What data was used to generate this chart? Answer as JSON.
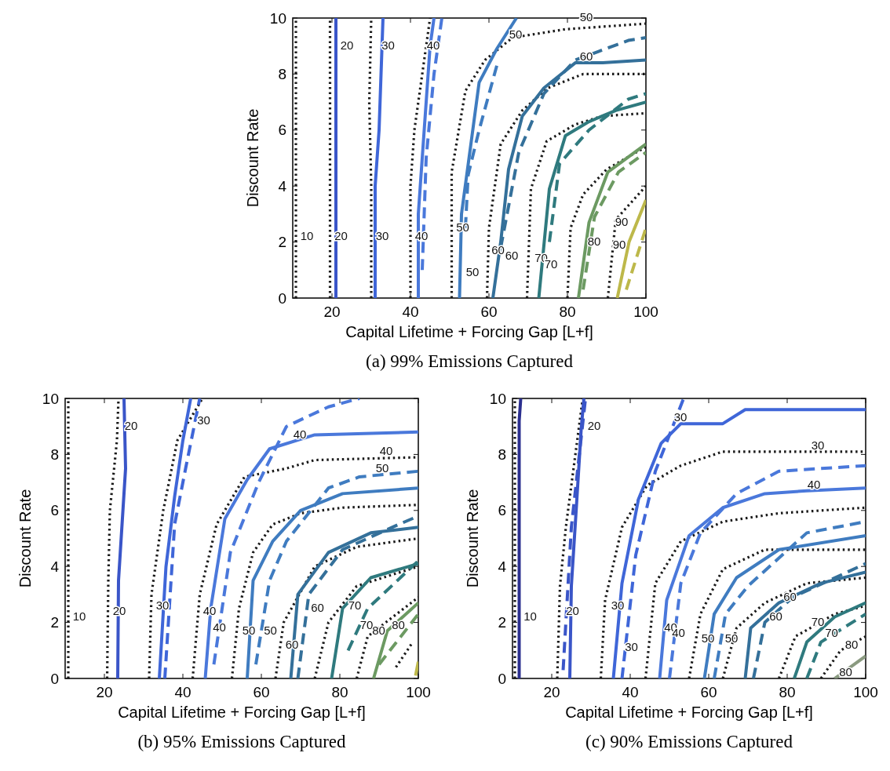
{
  "chart_data": [
    {
      "type": "line",
      "title": "(a) 99% Emissions Captured",
      "xlabel": "Capital Lifetime + Forcing Gap [L+f]",
      "ylabel": "Discount Rate",
      "xlim": [
        10,
        100
      ],
      "ylim": [
        0,
        10
      ],
      "xticks": [
        20,
        40,
        60,
        80,
        100
      ],
      "yticks": [
        0,
        2,
        4,
        6,
        8,
        10
      ],
      "marker": "none",
      "series": [
        {
          "color": "#1a1a1a",
          "line_style": "dotted",
          "x": [
            10.8,
            10.8
          ],
          "values": [
            0,
            10
          ]
        },
        {
          "color": "#1a1a1a",
          "line_style": "dotted",
          "x": [
            19.5,
            19.5
          ],
          "values": [
            0,
            10
          ]
        },
        {
          "color": "#3a55c8",
          "line_style": "solid",
          "x": [
            21,
            21
          ],
          "values": [
            0,
            10
          ]
        },
        {
          "color": "#1a1a1a",
          "line_style": "dotted",
          "x": [
            30,
            30,
            29.5,
            30
          ],
          "values": [
            0,
            4,
            7,
            10
          ]
        },
        {
          "color": "#3f66d8",
          "line_style": "solid",
          "x": [
            31,
            31,
            32,
            33
          ],
          "values": [
            0,
            4,
            6,
            10
          ]
        },
        {
          "color": "#1a1a1a",
          "line_style": "dotted",
          "x": [
            40,
            40,
            41,
            43,
            45
          ],
          "values": [
            0,
            4,
            6,
            8,
            10
          ]
        },
        {
          "color": "#4a78db",
          "line_style": "solid",
          "x": [
            42,
            42,
            43,
            44,
            45,
            46
          ],
          "values": [
            0,
            3,
            5,
            7,
            9,
            10
          ]
        },
        {
          "color": "#4a78db",
          "line_style": "dashed",
          "x": [
            43,
            44,
            46,
            48
          ],
          "values": [
            1,
            5,
            8,
            10
          ]
        },
        {
          "color": "#1a1a1a",
          "line_style": "dotted",
          "x": [
            50.5,
            50.5,
            54,
            59,
            66,
            79.5,
            100
          ],
          "values": [
            0,
            4.5,
            7.4,
            8.5,
            9.3,
            9.6,
            9.8
          ]
        },
        {
          "color": "#3f7cc0",
          "line_style": "solid",
          "x": [
            52.5,
            53,
            55.5,
            57.5,
            62,
            67
          ],
          "values": [
            0,
            3,
            5.6,
            7.7,
            8.9,
            10
          ]
        },
        {
          "color": "#3f7cc0",
          "line_style": "dashed",
          "x": [
            54,
            54.7,
            57.5,
            62
          ],
          "values": [
            2.5,
            4.4,
            6,
            8.3
          ]
        },
        {
          "color": "#1a1a1a",
          "line_style": "dotted",
          "x": [
            59.5,
            60,
            63,
            68.5,
            75,
            84,
            100
          ],
          "values": [
            0,
            2.5,
            5.5,
            6.7,
            7.5,
            8,
            8
          ]
        },
        {
          "color": "#34709a",
          "line_style": "solid",
          "x": [
            61,
            63,
            65,
            68.5,
            74,
            82,
            89,
            100
          ],
          "values": [
            0,
            2,
            4.6,
            6.5,
            7.5,
            8.4,
            8.4,
            8.5
          ]
        },
        {
          "color": "#34709a",
          "line_style": "dashed",
          "x": [
            63,
            67.6,
            74,
            82,
            95.5,
            100
          ],
          "values": [
            1.8,
            5.2,
            7.3,
            8.5,
            9.2,
            9.3
          ]
        },
        {
          "color": "#1a1a1a",
          "line_style": "dotted",
          "x": [
            69.7,
            70.7,
            74.7,
            82,
            89,
            100
          ],
          "values": [
            0,
            3.9,
            5.6,
            6.2,
            6.5,
            6.6
          ]
        },
        {
          "color": "#2f7a7e",
          "line_style": "solid",
          "x": [
            72.7,
            75.4,
            79.5,
            85.5,
            92.3,
            100
          ],
          "values": [
            0,
            3.9,
            5.8,
            6.3,
            6.7,
            7
          ]
        },
        {
          "color": "#2f7a7e",
          "line_style": "dashed",
          "x": [
            75.4,
            78,
            85.5,
            95.5,
            100
          ],
          "values": [
            2,
            4.8,
            6,
            7.1,
            7.3
          ]
        },
        {
          "color": "#1a1a1a",
          "line_style": "dotted",
          "x": [
            80,
            80.8,
            84,
            90,
            100
          ],
          "values": [
            0,
            2.5,
            3.7,
            4.6,
            5.4
          ]
        },
        {
          "color": "#6c9a62",
          "line_style": "solid",
          "x": [
            82.8,
            85.5,
            90.3,
            100
          ],
          "values": [
            0,
            2.7,
            4.5,
            5.5
          ]
        },
        {
          "color": "#6c9a62",
          "line_style": "dashed",
          "x": [
            84,
            86.9,
            93,
            100
          ],
          "values": [
            0.3,
            2.9,
            4.5,
            5.2
          ]
        },
        {
          "color": "#1a1a1a",
          "line_style": "dotted",
          "x": [
            90.3,
            92.3,
            100
          ],
          "values": [
            0,
            2.8,
            4
          ]
        },
        {
          "color": "#bdb84a",
          "line_style": "solid",
          "x": [
            92.7,
            95.7,
            100
          ],
          "values": [
            0,
            2,
            3.5
          ]
        },
        {
          "color": "#bdb84a",
          "line_style": "dashed",
          "x": [
            95,
            100
          ],
          "values": [
            0.3,
            2.5
          ]
        }
      ],
      "annotations": [
        {
          "text": "10",
          "x": 10.8,
          "y": 2
        },
        {
          "text": "20",
          "x": 21,
          "y": 8.8
        },
        {
          "text": "20",
          "x": 19.5,
          "y": 2
        },
        {
          "text": "30",
          "x": 31.5,
          "y": 8.8
        },
        {
          "text": "30",
          "x": 30,
          "y": 2
        },
        {
          "text": "40",
          "x": 43,
          "y": 8.8
        },
        {
          "text": "40",
          "x": 40,
          "y": 2
        },
        {
          "text": "50",
          "x": 64,
          "y": 9.2
        },
        {
          "text": "50",
          "x": 82,
          "y": 9.8
        },
        {
          "text": "50",
          "x": 50.5,
          "y": 2.3
        },
        {
          "text": "50",
          "x": 53,
          "y": 0.7
        },
        {
          "text": "60",
          "x": 82,
          "y": 8.4
        },
        {
          "text": "60",
          "x": 59.5,
          "y": 1.5
        },
        {
          "text": "60",
          "x": 63,
          "y": 1.3
        },
        {
          "text": "70",
          "x": 70.5,
          "y": 1.2
        },
        {
          "text": "70",
          "x": 73,
          "y": 1
        },
        {
          "text": "80",
          "x": 84,
          "y": 1.8
        },
        {
          "text": "90",
          "x": 91,
          "y": 2.5
        },
        {
          "text": "90",
          "x": 96,
          "y": 1.7
        }
      ]
    },
    {
      "type": "line",
      "title": "(b) 95% Emissions Captured",
      "xlabel": "Capital Lifetime + Forcing Gap [L+f]",
      "ylabel": "Discount Rate",
      "xlim": [
        10,
        100
      ],
      "ylim": [
        0,
        10
      ],
      "xticks": [
        20,
        40,
        60,
        80,
        100
      ],
      "yticks": [
        0,
        2,
        4,
        6,
        8,
        10
      ],
      "marker": "none",
      "series": [
        {
          "color": "#1a1a1a",
          "line_style": "dotted",
          "x": [
            10.8,
            10.8
          ],
          "values": [
            0,
            10
          ]
        },
        {
          "color": "#1a1a1a",
          "line_style": "dotted",
          "x": [
            20.7,
            21,
            21.4,
            23.2,
            23.6
          ],
          "values": [
            0,
            3.5,
            6,
            8.5,
            10
          ]
        },
        {
          "color": "#3a55c8",
          "line_style": "solid",
          "x": [
            23.4,
            23.6,
            25.4,
            25
          ],
          "values": [
            0,
            3.5,
            7.5,
            10
          ]
        },
        {
          "color": "#1a1a1a",
          "line_style": "dotted",
          "x": [
            31.4,
            32,
            35,
            38.6,
            45
          ],
          "values": [
            0,
            3,
            6,
            8.5,
            10
          ]
        },
        {
          "color": "#3f66d8",
          "line_style": "solid",
          "x": [
            34,
            35.7,
            37.9,
            40,
            42
          ],
          "values": [
            0,
            4,
            6.5,
            8.5,
            10
          ]
        },
        {
          "color": "#3f66d8",
          "line_style": "dashed",
          "x": [
            35.4,
            37.9,
            40.7,
            44.3
          ],
          "values": [
            0,
            5.5,
            7.5,
            10
          ]
        },
        {
          "color": "#1a1a1a",
          "line_style": "dotted",
          "x": [
            42.5,
            44.3,
            48.6,
            55.7,
            66.4,
            73.6,
            100
          ],
          "values": [
            0,
            3,
            5.5,
            7.2,
            7.5,
            7.8,
            7.9
          ]
        },
        {
          "color": "#4a78db",
          "line_style": "solid",
          "x": [
            45.7,
            47.1,
            50.7,
            56.4,
            62.1,
            73.6,
            100
          ],
          "values": [
            0,
            2.5,
            5.7,
            7.1,
            8.2,
            8.7,
            8.8
          ]
        },
        {
          "color": "#4a78db",
          "line_style": "dashed",
          "x": [
            47.9,
            52.1,
            59.3,
            66.4,
            77.1,
            85
          ],
          "values": [
            0.5,
            4.5,
            7,
            9,
            9.7,
            10
          ]
        },
        {
          "color": "#1a1a1a",
          "line_style": "dotted",
          "x": [
            52.5,
            54.3,
            57.9,
            62.9,
            70,
            80.7,
            100
          ],
          "values": [
            0,
            2.5,
            4.5,
            5.5,
            5.9,
            6.1,
            6.2
          ]
        },
        {
          "color": "#3f7cc0",
          "line_style": "solid",
          "x": [
            56.4,
            57.9,
            62.9,
            70,
            80.7,
            100
          ],
          "values": [
            0,
            3.5,
            4.9,
            6,
            6.6,
            6.8
          ]
        },
        {
          "color": "#3f7cc0",
          "line_style": "dashed",
          "x": [
            58.6,
            62.1,
            66.4,
            77.1,
            85,
            100
          ],
          "values": [
            0.5,
            3.5,
            4.9,
            6.8,
            7.2,
            7.4
          ]
        },
        {
          "color": "#1a1a1a",
          "line_style": "dotted",
          "x": [
            63.6,
            65.7,
            73.6,
            84.3,
            100
          ],
          "values": [
            0,
            2,
            4,
            4.7,
            5
          ]
        },
        {
          "color": "#34709a",
          "line_style": "solid",
          "x": [
            67.5,
            69.3,
            77.1,
            87.9,
            100
          ],
          "values": [
            0,
            3,
            4.5,
            5.2,
            5.4
          ]
        },
        {
          "color": "#34709a",
          "line_style": "dashed",
          "x": [
            69.3,
            72.1,
            80.7,
            95,
            100
          ],
          "values": [
            0,
            3,
            4.6,
            5.5,
            5.8
          ]
        },
        {
          "color": "#1a1a1a",
          "line_style": "dotted",
          "x": [
            73.6,
            77.1,
            84.3,
            100
          ],
          "values": [
            0,
            2,
            3.3,
            4
          ]
        },
        {
          "color": "#2f7a7e",
          "line_style": "solid",
          "x": [
            77.9,
            80.7,
            87.9,
            100
          ],
          "values": [
            0,
            2.5,
            3.6,
            4.1
          ]
        },
        {
          "color": "#2f7a7e",
          "line_style": "dashed",
          "x": [
            82.1,
            87.1,
            100
          ],
          "values": [
            1,
            2.5,
            4.2
          ]
        },
        {
          "color": "#1a1a1a",
          "line_style": "dotted",
          "x": [
            84.3,
            87.1,
            100
          ],
          "values": [
            0,
            1.5,
            2.9
          ]
        },
        {
          "color": "#6c9a62",
          "line_style": "solid",
          "x": [
            88.6,
            92.1,
            100
          ],
          "values": [
            0,
            1.7,
            2.7
          ]
        },
        {
          "color": "#6c9a62",
          "line_style": "dashed",
          "x": [
            90,
            100
          ],
          "values": [
            0.5,
            2.3
          ]
        },
        {
          "color": "#1a1a1a",
          "line_style": "dotted",
          "x": [
            94.3,
            98.6
          ],
          "values": [
            0.4,
            1.3
          ]
        },
        {
          "color": "#bdb84a",
          "line_style": "solid",
          "x": [
            99.3,
            100
          ],
          "values": [
            0.1,
            0.6
          ]
        }
      ],
      "annotations": [
        {
          "text": "10",
          "x": 10.8,
          "y": 2
        },
        {
          "text": "20",
          "x": 24,
          "y": 8.8
        },
        {
          "text": "20",
          "x": 21,
          "y": 2.2
        },
        {
          "text": "30",
          "x": 42.5,
          "y": 9
        },
        {
          "text": "30",
          "x": 32,
          "y": 2.4
        },
        {
          "text": "40",
          "x": 67,
          "y": 8.5
        },
        {
          "text": "40",
          "x": 89,
          "y": 7.9
        },
        {
          "text": "40",
          "x": 44,
          "y": 2.2
        },
        {
          "text": "40",
          "x": 46.5,
          "y": 1.6
        },
        {
          "text": "50",
          "x": 88,
          "y": 7.3
        },
        {
          "text": "50",
          "x": 54,
          "y": 1.5
        },
        {
          "text": "50",
          "x": 59.5,
          "y": 1.5
        },
        {
          "text": "60",
          "x": 65,
          "y": 1
        },
        {
          "text": "60",
          "x": 71.5,
          "y": 2.3
        },
        {
          "text": "70",
          "x": 81,
          "y": 2.4
        },
        {
          "text": "70",
          "x": 84,
          "y": 1.7
        },
        {
          "text": "80",
          "x": 87.1,
          "y": 1.5
        },
        {
          "text": "80",
          "x": 92.1,
          "y": 1.7
        }
      ]
    },
    {
      "type": "line",
      "title": "(c) 90% Emissions Captured",
      "xlabel": "Capital Lifetime + Forcing Gap [L+f]",
      "ylabel": "Discount Rate",
      "xlim": [
        10,
        100
      ],
      "ylim": [
        0,
        10
      ],
      "xticks": [
        20,
        40,
        60,
        80,
        100
      ],
      "yticks": [
        0,
        2,
        4,
        6,
        8,
        10
      ],
      "marker": "none",
      "series": [
        {
          "color": "#1a1a1a",
          "line_style": "dotted",
          "x": [
            10.6,
            10.6
          ],
          "values": [
            0,
            10
          ]
        },
        {
          "color": "#2b2f8f",
          "line_style": "solid",
          "x": [
            11.7,
            11.7,
            12.1
          ],
          "values": [
            0,
            9.2,
            10
          ]
        },
        {
          "color": "#1a1a1a",
          "line_style": "dotted",
          "x": [
            21.4,
            22.1,
            23.6,
            26.4,
            27.9
          ],
          "values": [
            0,
            3.3,
            5.4,
            8.4,
            10
          ]
        },
        {
          "color": "#3a55c8",
          "line_style": "solid",
          "x": [
            24.6,
            25,
            26.4,
            27.5,
            28.2
          ],
          "values": [
            0,
            3.3,
            6.4,
            8.9,
            10
          ]
        },
        {
          "color": "#3a55c8",
          "line_style": "dashed",
          "x": [
            22.9,
            25,
            28.6
          ],
          "values": [
            0.3,
            5.4,
            10
          ]
        },
        {
          "color": "#1a1a1a",
          "line_style": "dotted",
          "x": [
            32.5,
            33.6,
            37.9,
            44.3,
            52.9,
            63.6,
            100
          ],
          "values": [
            0,
            2.8,
            5.4,
            6.9,
            7.6,
            8.1,
            8.1
          ]
        },
        {
          "color": "#3f66d8",
          "line_style": "solid",
          "x": [
            35.7,
            37.9,
            42.1,
            47.9,
            52.9,
            63.6,
            69.3,
            100
          ],
          "values": [
            0,
            3.4,
            6.4,
            8.4,
            9.1,
            9.1,
            9.6,
            9.6
          ]
        },
        {
          "color": "#3f66d8",
          "line_style": "dashed",
          "x": [
            37.9,
            41.4,
            46.4,
            51.4,
            53.6
          ],
          "values": [
            0,
            4.4,
            7.4,
            9.2,
            10
          ]
        },
        {
          "color": "#1a1a1a",
          "line_style": "dotted",
          "x": [
            43.9,
            46.4,
            52.9,
            63.6,
            77.9,
            100
          ],
          "values": [
            0,
            3.4,
            4.9,
            5.6,
            5.9,
            6.1
          ]
        },
        {
          "color": "#4a78db",
          "line_style": "solid",
          "x": [
            47.5,
            49.3,
            55,
            63.6,
            74.3,
            85,
            100
          ],
          "values": [
            0,
            2.8,
            5.1,
            6.1,
            6.6,
            6.7,
            6.8
          ]
        },
        {
          "color": "#4a78db",
          "line_style": "dashed",
          "x": [
            50,
            52.9,
            57.9,
            67.1,
            77.9,
            100
          ],
          "values": [
            0,
            3.4,
            5.2,
            6.6,
            7.4,
            7.6
          ]
        },
        {
          "color": "#1a1a1a",
          "line_style": "dotted",
          "x": [
            55,
            57.9,
            63.6,
            74.3,
            100
          ],
          "values": [
            0,
            2.3,
            3.9,
            4.6,
            4.6
          ]
        },
        {
          "color": "#3f7cc0",
          "line_style": "solid",
          "x": [
            58.9,
            61.4,
            67.1,
            77.9,
            100
          ],
          "values": [
            0,
            2.3,
            3.6,
            4.6,
            5.1
          ]
        },
        {
          "color": "#3f7cc0",
          "line_style": "dashed",
          "x": [
            61.4,
            64.3,
            70,
            85,
            100
          ],
          "values": [
            0,
            2.3,
            3.3,
            5.2,
            5.6
          ]
        },
        {
          "color": "#1a1a1a",
          "line_style": "dotted",
          "x": [
            63.6,
            67.1,
            74.3,
            85,
            100
          ],
          "values": [
            0,
            1.8,
            2.7,
            3.4,
            3.6
          ]
        },
        {
          "color": "#34709a",
          "line_style": "solid",
          "x": [
            69.3,
            70.7,
            77.9,
            88.6,
            100
          ],
          "values": [
            0,
            1.8,
            2.7,
            3.4,
            3.8
          ]
        },
        {
          "color": "#34709a",
          "line_style": "dashed",
          "x": [
            71.4,
            74.3,
            81.4,
            100
          ],
          "values": [
            0,
            2,
            2.9,
            4.1
          ]
        },
        {
          "color": "#1a1a1a",
          "line_style": "dotted",
          "x": [
            77.9,
            82.1,
            92.1,
            100
          ],
          "values": [
            0,
            1.5,
            2.3,
            2.6
          ]
        },
        {
          "color": "#2f7a7e",
          "line_style": "solid",
          "x": [
            81.8,
            85,
            92.1,
            100
          ],
          "values": [
            0,
            1.3,
            2.2,
            2.7
          ]
        },
        {
          "color": "#2f7a7e",
          "line_style": "dashed",
          "x": [
            85,
            88.6,
            100
          ],
          "values": [
            0,
            1.3,
            2.3
          ]
        },
        {
          "color": "#1a1a1a",
          "line_style": "dotted",
          "x": [
            88.6,
            93.6,
            100
          ],
          "values": [
            0,
            1,
            1.5
          ]
        },
        {
          "color": "#8a9a80",
          "line_style": "solid",
          "x": [
            92.1,
            100
          ],
          "values": [
            0,
            0.8
          ]
        }
      ],
      "annotations": [
        {
          "text": "10",
          "x": 11.7,
          "y": 2
        },
        {
          "text": "20",
          "x": 28,
          "y": 8.8
        },
        {
          "text": "20",
          "x": 22.5,
          "y": 2.2
        },
        {
          "text": "30",
          "x": 50,
          "y": 9.1
        },
        {
          "text": "30",
          "x": 85,
          "y": 8.1
        },
        {
          "text": "30",
          "x": 34,
          "y": 2.4
        },
        {
          "text": "30",
          "x": 37.5,
          "y": 0.9
        },
        {
          "text": "40",
          "x": 84,
          "y": 6.7
        },
        {
          "text": "40",
          "x": 47.5,
          "y": 1.6
        },
        {
          "text": "40",
          "x": 49.5,
          "y": 1.4
        },
        {
          "text": "50",
          "x": 57,
          "y": 1.2
        },
        {
          "text": "50",
          "x": 63,
          "y": 1.2
        },
        {
          "text": "60",
          "x": 74.3,
          "y": 2
        },
        {
          "text": "60",
          "x": 77.9,
          "y": 2.7
        },
        {
          "text": "70",
          "x": 85,
          "y": 1.8
        },
        {
          "text": "70",
          "x": 88.5,
          "y": 1.4
        },
        {
          "text": "80",
          "x": 92.1,
          "y": 0
        },
        {
          "text": "80",
          "x": 93.6,
          "y": 1
        }
      ]
    }
  ]
}
